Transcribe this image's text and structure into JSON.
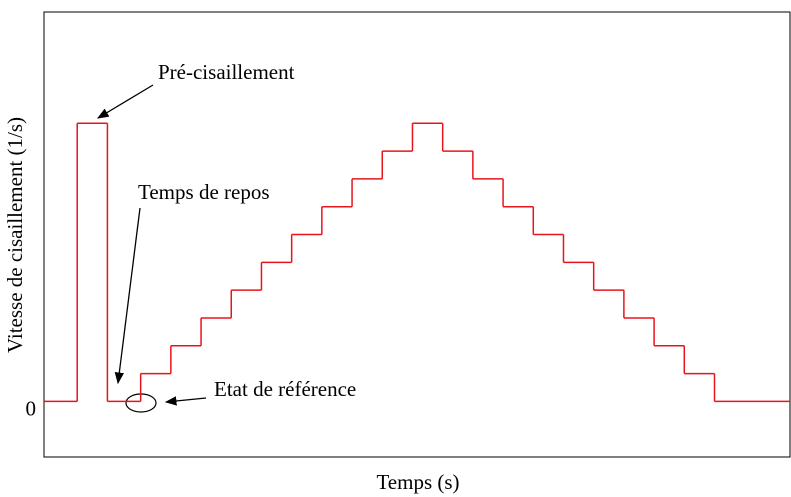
{
  "chart_data": {
    "type": "step",
    "xlabel": "Temps (s)",
    "ylabel": "Vitesse de cisaillement (1/s)",
    "annotations": [
      "Pré-cisaillement",
      "Temps de repos",
      "Etat de référence"
    ],
    "series": [
      {
        "color": "#e8141c",
        "x": [
          0,
          1.1,
          2.1,
          3.2,
          4.2,
          5.2,
          6.2,
          7.2,
          8.2,
          9.2,
          10.2,
          11.2,
          12.2,
          13.2,
          14.2,
          15.2,
          16.2,
          17.2,
          18.2,
          19.2,
          20.2,
          21.2,
          22.2
        ],
        "values": [
          0,
          10,
          0,
          1,
          2,
          3,
          4,
          5,
          6,
          7,
          8,
          9,
          10,
          9,
          8,
          7,
          6,
          5,
          4,
          3,
          2,
          1,
          0
        ]
      }
    ],
    "xlim": [
      0,
      24.7
    ],
    "ylim": [
      -2,
      14
    ],
    "yticks": [
      0
    ]
  }
}
